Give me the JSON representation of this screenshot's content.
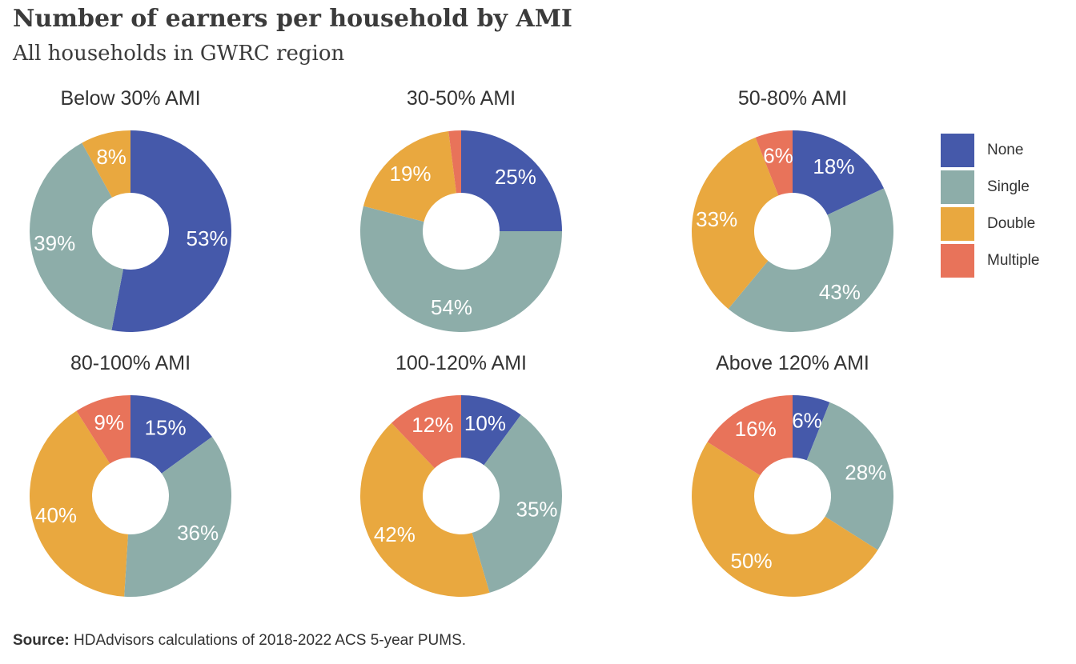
{
  "title": "Number of earners per household by AMI",
  "subtitle": "All households in GWRC region",
  "source": {
    "label": "Source:",
    "text": "HDAdvisors calculations of 2018-2022 ACS 5-year PUMS."
  },
  "legend": [
    {
      "label": "None",
      "color": "#4559aa"
    },
    {
      "label": "Single",
      "color": "#8dada9"
    },
    {
      "label": "Double",
      "color": "#e9a83f"
    },
    {
      "label": "Multiple",
      "color": "#e8735a"
    }
  ],
  "chart_data": [
    {
      "type": "pie",
      "title": "Below 30% AMI",
      "categories": [
        "None",
        "Single",
        "Double",
        "Multiple"
      ],
      "values": [
        53,
        39,
        8,
        0
      ],
      "labels": [
        "53%",
        "39%",
        "8%",
        ""
      ]
    },
    {
      "type": "pie",
      "title": "30-50% AMI",
      "categories": [
        "None",
        "Single",
        "Double",
        "Multiple"
      ],
      "values": [
        25,
        54,
        19,
        2
      ],
      "labels": [
        "25%",
        "54%",
        "19%",
        ""
      ]
    },
    {
      "type": "pie",
      "title": "50-80% AMI",
      "categories": [
        "None",
        "Single",
        "Double",
        "Multiple"
      ],
      "values": [
        18,
        43,
        33,
        6
      ],
      "labels": [
        "18%",
        "43%",
        "33%",
        "6%"
      ]
    },
    {
      "type": "pie",
      "title": "80-100% AMI",
      "categories": [
        "None",
        "Single",
        "Double",
        "Multiple"
      ],
      "values": [
        15,
        36,
        40,
        9
      ],
      "labels": [
        "15%",
        "36%",
        "40%",
        "9%"
      ]
    },
    {
      "type": "pie",
      "title": "100-120% AMI",
      "categories": [
        "None",
        "Single",
        "Double",
        "Multiple"
      ],
      "values": [
        10,
        35,
        42,
        12
      ],
      "labels": [
        "10%",
        "35%",
        "42%",
        "12%"
      ]
    },
    {
      "type": "pie",
      "title": "Above 120% AMI",
      "categories": [
        "None",
        "Single",
        "Double",
        "Multiple"
      ],
      "values": [
        6,
        28,
        50,
        16
      ],
      "labels": [
        "6%",
        "28%",
        "50%",
        "16%"
      ]
    }
  ]
}
